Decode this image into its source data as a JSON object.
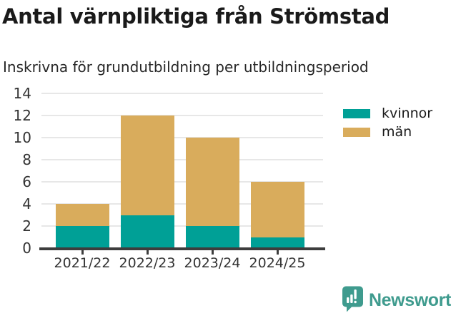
{
  "title": "Antal värnpliktiga från Strömstad",
  "subtitle": "Inskrivna för grundutbildning per utbildningsperiod",
  "chart_data": {
    "type": "bar",
    "stacked": true,
    "title": "Antal värnpliktiga från Strömstad",
    "subtitle": "Inskrivna för grundutbildning per utbildningsperiod",
    "categories": [
      "2021/22",
      "2022/23",
      "2023/24",
      "2024/25"
    ],
    "series": [
      {
        "name": "kvinnor",
        "color": "#00a096",
        "values": [
          2,
          3,
          2,
          1
        ]
      },
      {
        "name": "män",
        "color": "#d9ac5c",
        "values": [
          2,
          9,
          8,
          5
        ]
      }
    ],
    "totals": [
      4,
      12,
      10,
      6
    ],
    "xlabel": "",
    "ylabel": "",
    "ylim": [
      0,
      14
    ],
    "yticks": [
      0,
      2,
      4,
      6,
      8,
      10,
      12,
      14
    ],
    "grid": true,
    "legend_position": "right"
  },
  "colors": {
    "kvinnor": "#00a096",
    "man": "#d9ac5c",
    "grid": "#e7e7e7",
    "axis": "#3d3d3d",
    "brand": "#3f9b8e"
  },
  "footer": {
    "brand": "Newsworthy",
    "logo_icon": "bar-chart-speech-bubble-icon"
  }
}
